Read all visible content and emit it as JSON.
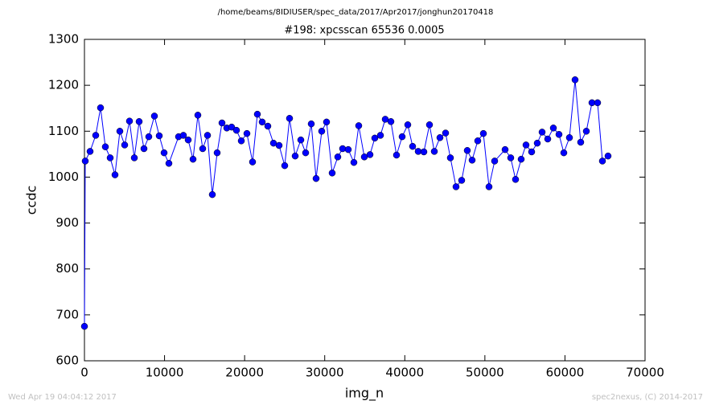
{
  "chart_data": {
    "type": "line",
    "suptitle": "/home/beams/8IDIUSER/spec_data/2017/Apr2017/jonghun20170418",
    "title": "#198: xpcsscan 65536 0.0005",
    "xlabel": "img_n",
    "ylabel": "ccdc",
    "footer_left": "Wed Apr 19 04:04:12 2017",
    "footer_right": "spec2nexus, (C) 2014-2017",
    "xlim": [
      0,
      70000
    ],
    "xticks": [
      0,
      10000,
      20000,
      30000,
      40000,
      50000,
      60000,
      70000
    ],
    "ylim": [
      600,
      1300
    ],
    "yticks": [
      600,
      700,
      800,
      900,
      1000,
      1100,
      1200,
      1300
    ],
    "x": [
      0,
      100,
      703,
      1406,
      2009,
      2611,
      3214,
      3816,
      4419,
      5022,
      5624,
      6227,
      6829,
      7432,
      8034,
      8737,
      9340,
      9943,
      10545,
      11750,
      12353,
      12955,
      13558,
      14161,
      14763,
      15366,
      15968,
      16571,
      17174,
      17776,
      18379,
      18981,
      19584,
      20287,
      20990,
      21592,
      22195,
      22898,
      23601,
      24304,
      25007,
      25610,
      26313,
      27016,
      27618,
      28321,
      28924,
      29627,
      30229,
      30932,
      31635,
      32238,
      32941,
      33644,
      34247,
      34950,
      35653,
      36255,
      36958,
      37561,
      38264,
      38967,
      39670,
      40373,
      40975,
      41678,
      42381,
      43084,
      43687,
      44390,
      45093,
      45695,
      46398,
      47101,
      47804,
      48407,
      49110,
      49813,
      50516,
      51219,
      52525,
      53228,
      53830,
      54533,
      55136,
      55839,
      56542,
      57145,
      57848,
      58551,
      59254,
      59856,
      60559,
      61262,
      61965,
      62668,
      63371,
      64074,
      64677,
      65380
    ],
    "series": [
      {
        "name": "ccdc",
        "color": "#0000ff",
        "values": [
          675,
          1035,
          1056,
          1091,
          1151,
          1066,
          1042,
          1005,
          1100,
          1070,
          1122,
          1042,
          1121,
          1062,
          1088,
          1133,
          1090,
          1053,
          1030,
          1088,
          1091,
          1081,
          1039,
          1135,
          1062,
          1091,
          962,
          1053,
          1118,
          1107,
          1109,
          1102,
          1079,
          1095,
          1033,
          1137,
          1120,
          1111,
          1074,
          1069,
          1025,
          1128,
          1046,
          1081,
          1053,
          1116,
          997,
          1100,
          1120,
          1009,
          1044,
          1062,
          1060,
          1032,
          1112,
          1044,
          1049,
          1085,
          1091,
          1126,
          1121,
          1048,
          1088,
          1114,
          1067,
          1056,
          1055,
          1114,
          1056,
          1086,
          1096,
          1042,
          979,
          993,
          1058,
          1037,
          1079,
          1095,
          979,
          1035,
          1060,
          1042,
          995,
          1039,
          1070,
          1055,
          1074,
          1098,
          1083,
          1107,
          1093,
          1053,
          1086,
          1212,
          1076,
          1100,
          1162,
          1162,
          1035,
          1046
        ]
      }
    ]
  }
}
